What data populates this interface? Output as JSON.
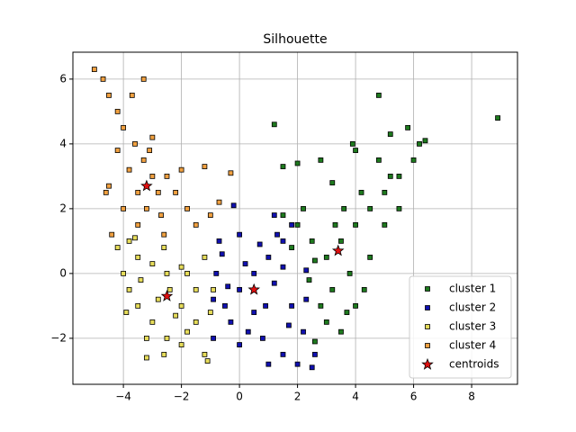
{
  "chart_data": {
    "type": "scatter",
    "title": "Silhouette",
    "xlim": [
      -5.74,
      9.58
    ],
    "ylim": [
      -3.42,
      6.83
    ],
    "xticks": [
      {
        "value": -4,
        "label": "−4"
      },
      {
        "value": -2,
        "label": "−2"
      },
      0,
      2,
      4,
      6,
      8
    ],
    "yticks": [
      {
        "value": -2,
        "label": "−2"
      },
      0,
      2,
      4,
      6
    ],
    "grid": true,
    "legend": "lower right",
    "series": [
      {
        "name": "cluster 1",
        "color": "#1e7a1e",
        "marker": "square",
        "values": [
          [
            1.5,
            1.8
          ],
          [
            2,
            1.5
          ],
          [
            2.5,
            1
          ],
          [
            3,
            0.5
          ],
          [
            3.5,
            1
          ],
          [
            4,
            1.5
          ],
          [
            4.5,
            2
          ],
          [
            5,
            2.5
          ],
          [
            5.5,
            3
          ],
          [
            6,
            3.5
          ],
          [
            6.2,
            4
          ],
          [
            5.8,
            4.5
          ],
          [
            5.2,
            4.3
          ],
          [
            4.8,
            3.5
          ],
          [
            4.2,
            2.5
          ],
          [
            3.8,
            0
          ],
          [
            3.2,
            -0.5
          ],
          [
            2.8,
            -1
          ],
          [
            3,
            -1.5
          ],
          [
            2.6,
            -2.1
          ],
          [
            3.5,
            -1.8
          ],
          [
            4,
            -1
          ],
          [
            4.5,
            0.5
          ],
          [
            5,
            1.5
          ],
          [
            5.5,
            2
          ],
          [
            2.2,
            2
          ],
          [
            1.8,
            0.8
          ],
          [
            2.4,
            -0.2
          ],
          [
            3.6,
            2
          ],
          [
            3.2,
            2.8
          ],
          [
            2.8,
            3.5
          ],
          [
            4,
            3.8
          ],
          [
            2,
            3.4
          ],
          [
            1.5,
            3.3
          ],
          [
            1.2,
            4.6
          ],
          [
            4.8,
            5.5
          ],
          [
            8.9,
            4.8
          ],
          [
            3.9,
            4
          ],
          [
            6.4,
            4.1
          ],
          [
            5.2,
            3
          ],
          [
            4.3,
            -0.5
          ],
          [
            3.3,
            1.5
          ],
          [
            2.6,
            0.4
          ],
          [
            3.7,
            -1.2
          ]
        ]
      },
      {
        "name": "cluster 2",
        "color": "#1010b0",
        "marker": "square",
        "values": [
          [
            -0.8,
            0
          ],
          [
            -0.5,
            -1
          ],
          [
            0,
            -0.5
          ],
          [
            0.5,
            0
          ],
          [
            1,
            0.5
          ],
          [
            1.5,
            1
          ],
          [
            1.8,
            1.5
          ],
          [
            1.2,
            1.8
          ],
          [
            -0.2,
            2.1
          ],
          [
            0,
            1.2
          ],
          [
            -0.7,
            1
          ],
          [
            -0.9,
            -2
          ],
          [
            0,
            -2.2
          ],
          [
            0.8,
            -2
          ],
          [
            1.5,
            -2.5
          ],
          [
            2,
            -2.8
          ],
          [
            2.5,
            -2.9
          ],
          [
            2.2,
            -1.8
          ],
          [
            1.8,
            -1
          ],
          [
            1.2,
            -0.3
          ],
          [
            0.5,
            -1.2
          ],
          [
            -0.3,
            -1.5
          ],
          [
            0.7,
            0.9
          ],
          [
            1.5,
            0.2
          ],
          [
            2.3,
            -0.8
          ],
          [
            2.6,
            -2.5
          ],
          [
            1,
            -2.8
          ],
          [
            0.3,
            -1.8
          ],
          [
            -0.6,
            0.6
          ],
          [
            -0.9,
            -0.8
          ],
          [
            0.2,
            0.3
          ],
          [
            1.7,
            -1.6
          ],
          [
            2.3,
            0.1
          ],
          [
            0.9,
            -1
          ],
          [
            -0.4,
            -0.4
          ],
          [
            1.3,
            1.2
          ]
        ]
      },
      {
        "name": "cluster 3",
        "color": "#e6dc5a",
        "marker": "square",
        "values": [
          [
            -4,
            0
          ],
          [
            -3.8,
            -0.5
          ],
          [
            -3.5,
            -1
          ],
          [
            -3,
            -1.5
          ],
          [
            -2.5,
            -2
          ],
          [
            -2.6,
            -2.5
          ],
          [
            -3.2,
            -2
          ],
          [
            -2,
            -1
          ],
          [
            -1.5,
            -0.5
          ],
          [
            -1,
            -1.2
          ],
          [
            -1.2,
            -2.5
          ],
          [
            -1.8,
            -1.8
          ],
          [
            -3.5,
            0.5
          ],
          [
            -3,
            0.3
          ],
          [
            -2.5,
            0
          ],
          [
            -2,
            0.2
          ],
          [
            -3.8,
            1
          ],
          [
            -4.2,
            0.8
          ],
          [
            -3.4,
            -0.2
          ],
          [
            -2.8,
            -0.8
          ],
          [
            -2.2,
            -1.3
          ],
          [
            -1.5,
            -1.5
          ],
          [
            -0.9,
            -0.5
          ],
          [
            -1.2,
            0.5
          ],
          [
            -2.6,
            0.8
          ],
          [
            -3.9,
            -1.2
          ],
          [
            -3.2,
            -2.6
          ],
          [
            -1.1,
            -2.7
          ],
          [
            -1.8,
            0
          ],
          [
            -2.4,
            -0.5
          ],
          [
            -3.6,
            1.1
          ],
          [
            -2,
            -2.2
          ]
        ]
      },
      {
        "name": "cluster 4",
        "color": "#f0a040",
        "marker": "square",
        "values": [
          [
            -5,
            6.3
          ],
          [
            -4.7,
            6
          ],
          [
            -4.5,
            5.5
          ],
          [
            -4.2,
            5
          ],
          [
            -4,
            4.5
          ],
          [
            -3.6,
            4
          ],
          [
            -3.3,
            3.5
          ],
          [
            -3,
            3
          ],
          [
            -2.8,
            2.5
          ],
          [
            -3.2,
            2
          ],
          [
            -3.5,
            1.5
          ],
          [
            -4,
            2
          ],
          [
            -4.5,
            2.7
          ],
          [
            -3.8,
            3.2
          ],
          [
            -4.2,
            3.8
          ],
          [
            -2.5,
            3
          ],
          [
            -2.2,
            2.5
          ],
          [
            -1.8,
            2
          ],
          [
            -1.5,
            1.5
          ],
          [
            -1,
            1.8
          ],
          [
            -0.3,
            3.1
          ],
          [
            -1.2,
            3.3
          ],
          [
            -2,
            3.2
          ],
          [
            -3.5,
            2.5
          ],
          [
            -2.7,
            1.8
          ],
          [
            -3,
            4.2
          ],
          [
            -3.7,
            5.5
          ],
          [
            -4.4,
            1.2
          ],
          [
            -3.3,
            6
          ],
          [
            -4.6,
            2.5
          ],
          [
            -2.6,
            1.2
          ],
          [
            -0.7,
            2.2
          ],
          [
            -3.1,
            3.8
          ]
        ]
      },
      {
        "name": "centroids",
        "color": "#e01010",
        "marker": "star",
        "values": [
          [
            3.4,
            0.7
          ],
          [
            0.5,
            -0.5
          ],
          [
            -2.5,
            -0.7
          ],
          [
            -3.2,
            2.7
          ]
        ]
      }
    ]
  }
}
